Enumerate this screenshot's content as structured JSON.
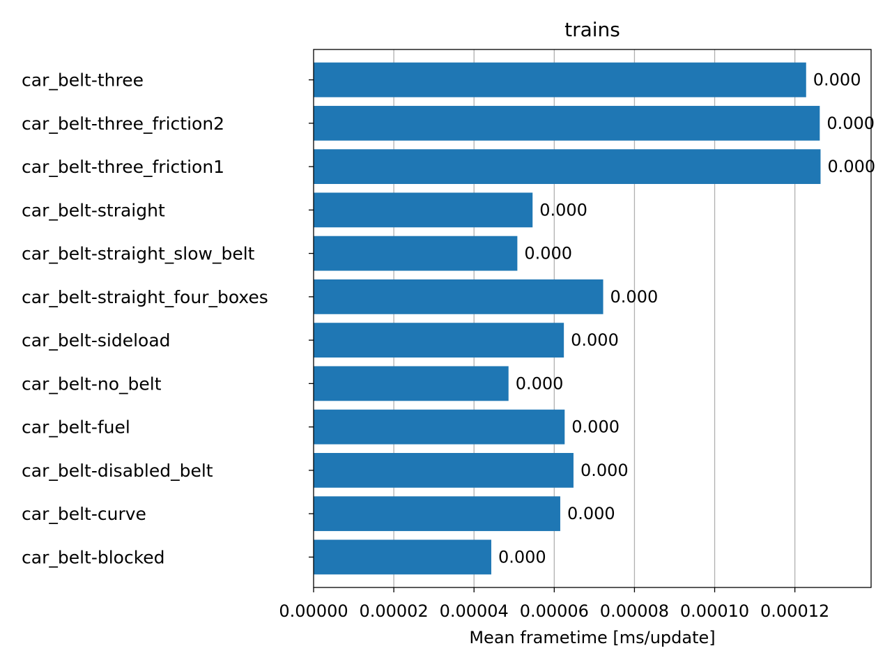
{
  "chart_data": {
    "type": "bar",
    "orientation": "horizontal",
    "title": "trains",
    "xlabel": "Mean frametime [ms/update]",
    "ylabel": "",
    "xlim": [
      0,
      0.000139
    ],
    "grid": "x",
    "color": "#1f77b4",
    "categories": [
      "car_belt-three",
      "car_belt-three_friction2",
      "car_belt-three_friction1",
      "car_belt-straight",
      "car_belt-straight_slow_belt",
      "car_belt-straight_four_boxes",
      "car_belt-sideload",
      "car_belt-no_belt",
      "car_belt-fuel",
      "car_belt-disabled_belt",
      "car_belt-curve",
      "car_belt-blocked"
    ],
    "values": [
      0.0001228,
      0.0001262,
      0.0001264,
      5.46e-05,
      5.08e-05,
      7.22e-05,
      6.24e-05,
      4.86e-05,
      6.26e-05,
      6.48e-05,
      6.15e-05,
      4.43e-05
    ],
    "data_labels": [
      "0.000",
      "0.000",
      "0.000",
      "0.000",
      "0.000",
      "0.000",
      "0.000",
      "0.000",
      "0.000",
      "0.000",
      "0.000",
      "0.000"
    ],
    "xticks": [
      0,
      2e-05,
      4e-05,
      6e-05,
      8e-05,
      0.0001,
      0.00012
    ],
    "xtick_labels": [
      "0.00000",
      "0.00002",
      "0.00004",
      "0.00006",
      "0.00008",
      "0.00010",
      "0.00012"
    ]
  }
}
